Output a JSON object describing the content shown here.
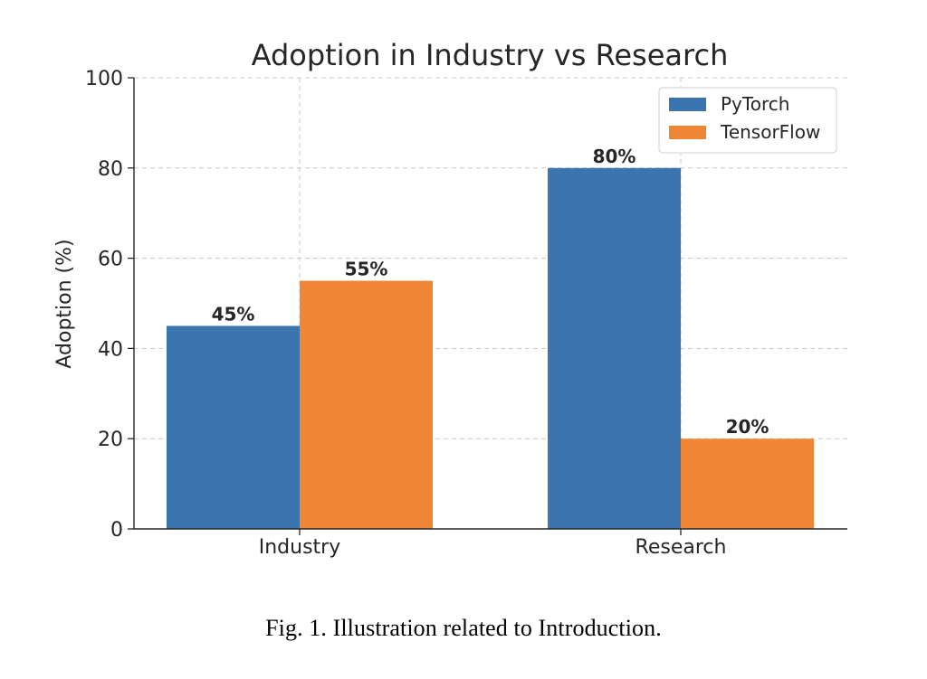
{
  "chart_data": {
    "type": "bar",
    "title": "Adoption in Industry vs Research",
    "xlabel": "",
    "ylabel": "Adoption (%)",
    "categories": [
      "Industry",
      "Research"
    ],
    "series": [
      {
        "name": "PyTorch",
        "values": [
          45,
          80
        ],
        "color": "#3b75af",
        "labels": [
          "45%",
          "80%"
        ]
      },
      {
        "name": "TensorFlow",
        "values": [
          55,
          20
        ],
        "color": "#ef8636",
        "labels": [
          "55%",
          "20%"
        ]
      }
    ],
    "ylim": [
      0,
      100
    ],
    "yticks": [
      "0",
      "20",
      "40",
      "60",
      "80",
      "100"
    ],
    "grid": true,
    "legend_position": "top-right"
  },
  "caption": "Fig. 1.  Illustration related to Introduction."
}
